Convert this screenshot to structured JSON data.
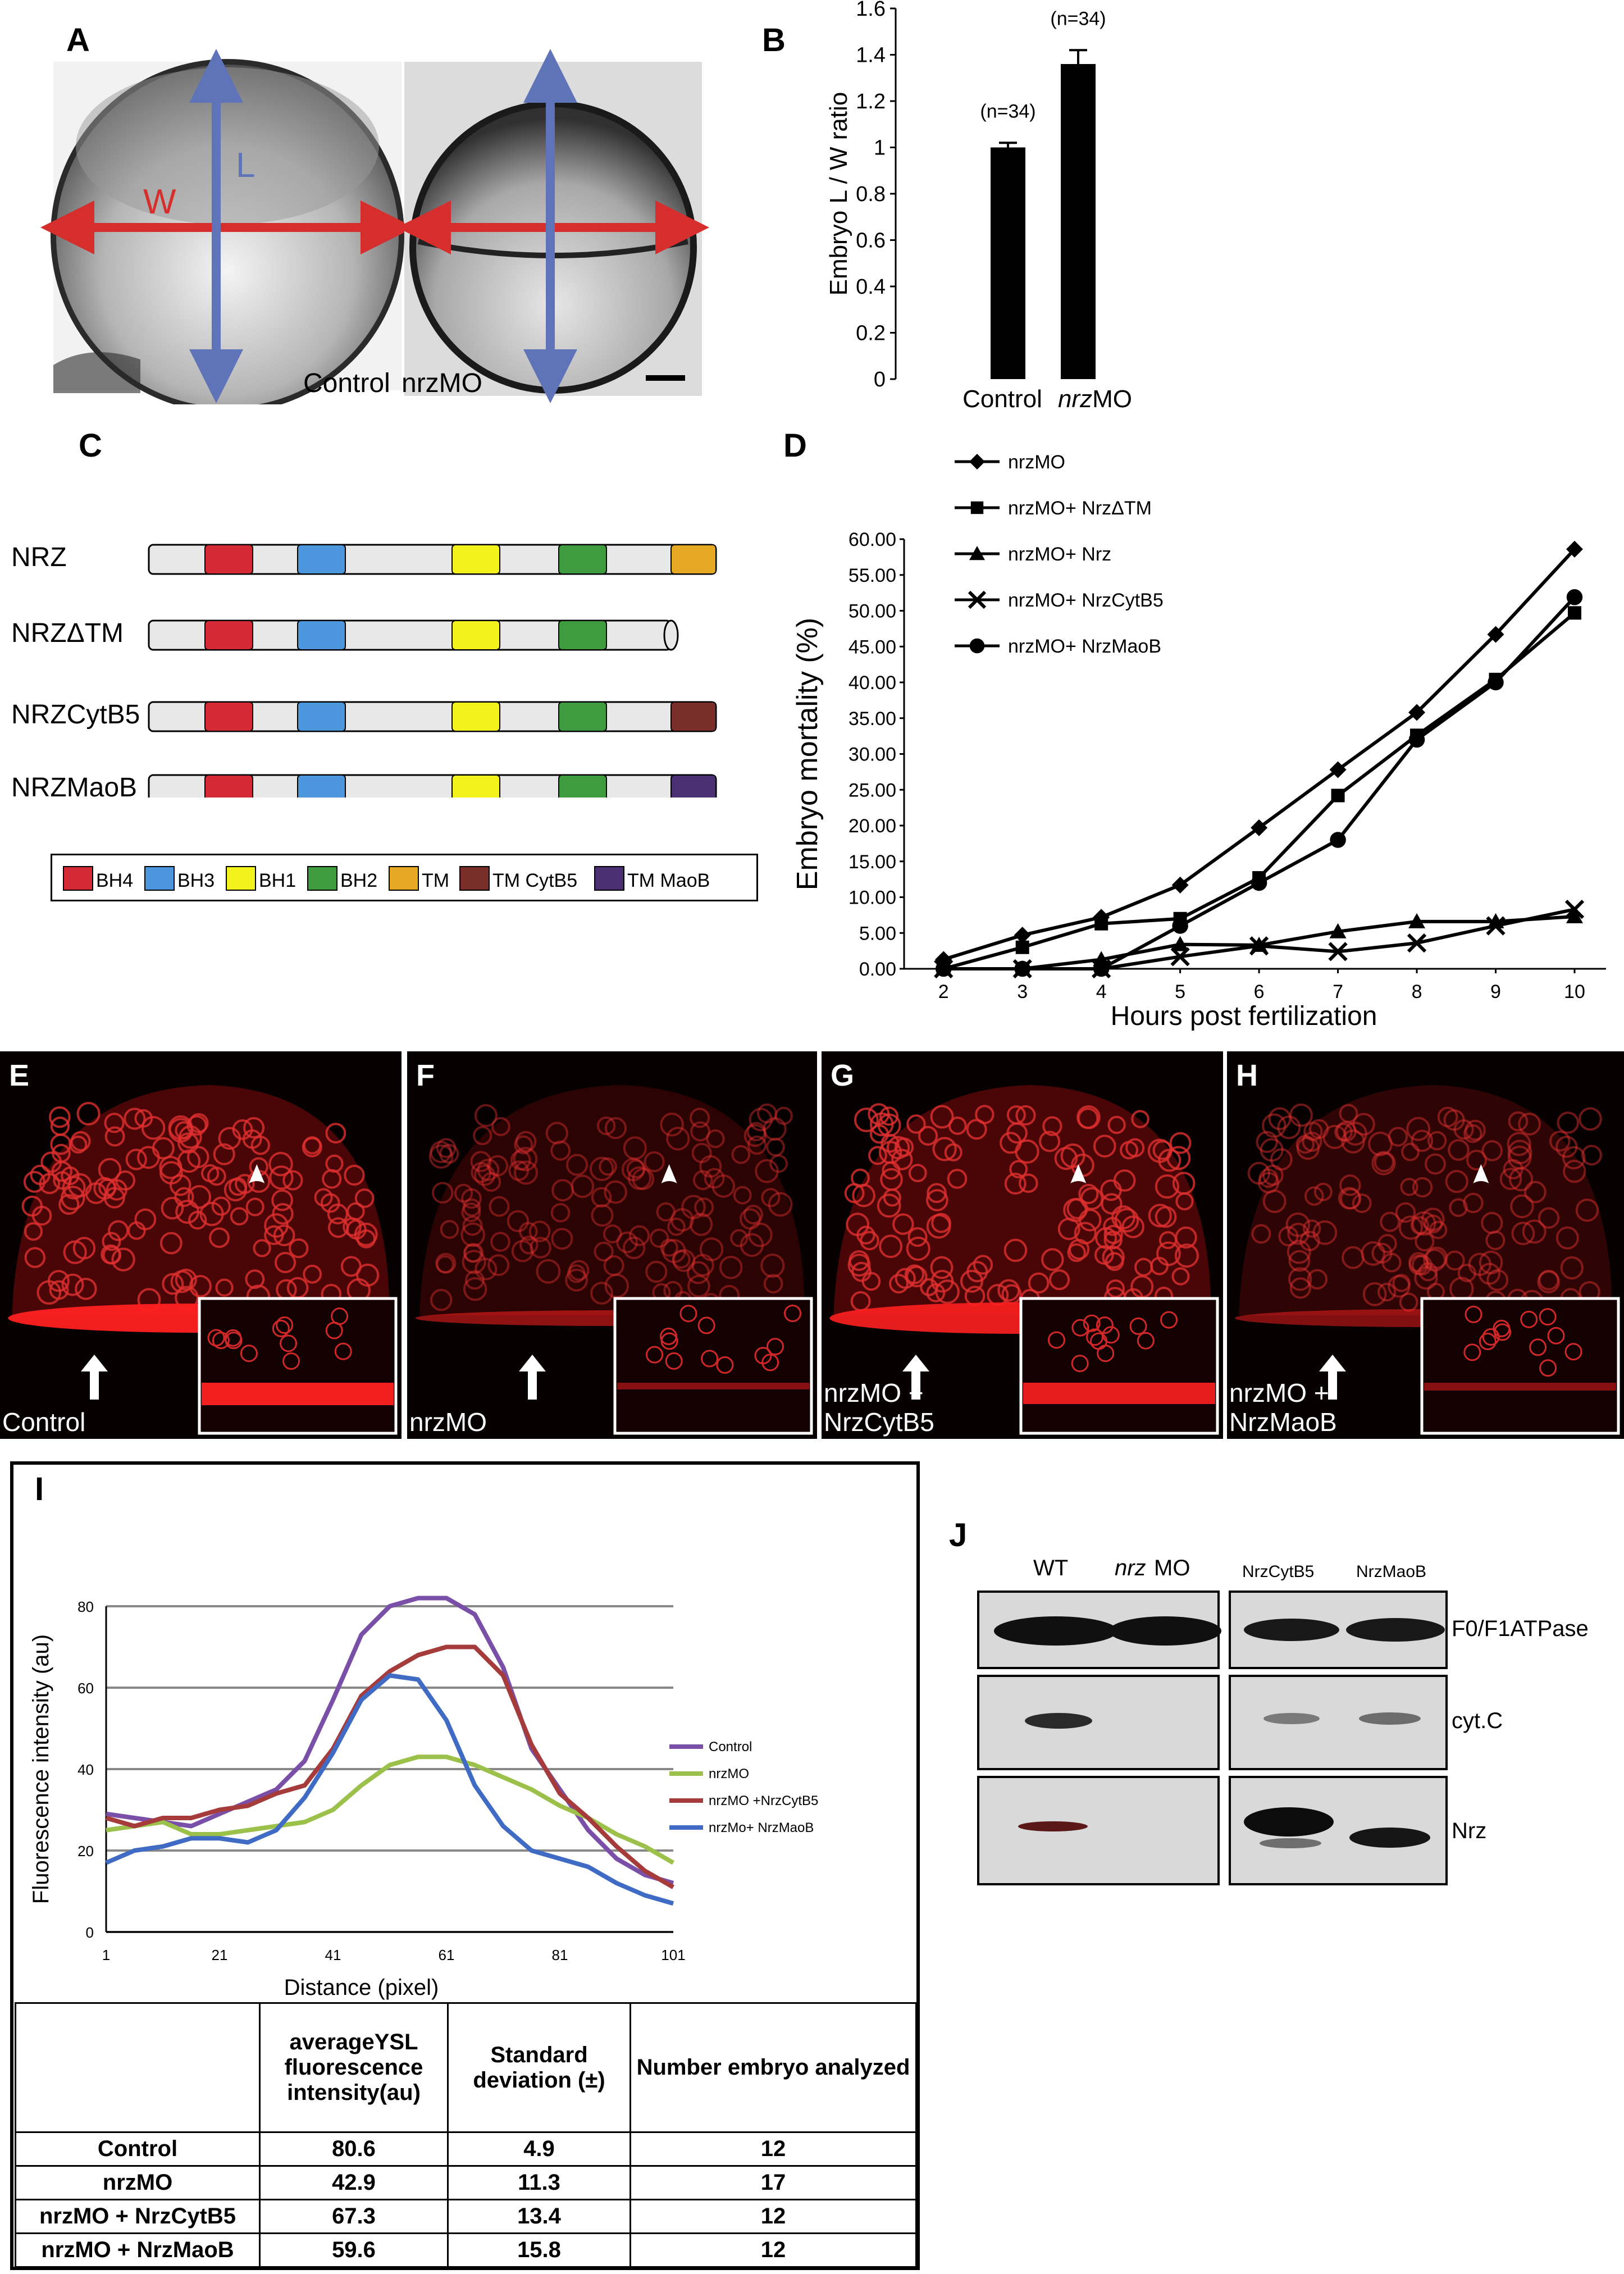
{
  "panels": {
    "A": "A",
    "B": "B",
    "C": "C",
    "D": "D",
    "E": "E",
    "F": "F",
    "G": "G",
    "H": "H",
    "I": "I",
    "J": "J"
  },
  "panel_a": {
    "arrow_w": "W",
    "arrow_l": "L",
    "control_label": "Control",
    "mo_label": "nrzMO",
    "arrow_w_color": "#d62d2d",
    "arrow_l_color": "#5e73b8"
  },
  "panel_c": {
    "constructs": [
      "NRZ",
      "NRZΔTM",
      "NRZCytB5",
      "NRZMaoB"
    ],
    "legend": [
      {
        "label": "BH4",
        "color": "#d42a35"
      },
      {
        "label": "BH3",
        "color": "#4c96dd"
      },
      {
        "label": "BH1",
        "color": "#f4f21c"
      },
      {
        "label": "BH2",
        "color": "#3e9c3e"
      },
      {
        "label": "TM",
        "color": "#e6a823"
      },
      {
        "label": "TM CytB5",
        "color": "#7a2e2a"
      },
      {
        "label": "TM MaoB",
        "color": "#4a2f73"
      }
    ]
  },
  "micrographs": [
    {
      "letter": "E",
      "label": "Control"
    },
    {
      "letter": "F",
      "label": "nrzMO"
    },
    {
      "letter": "G",
      "label": "nrzMO +\nNrzCytB5"
    },
    {
      "letter": "H",
      "label": "nrzMO +\nNrzMaoB"
    }
  ],
  "panel_i_table": {
    "headers": [
      "",
      "averageYSL fluorescence intensity(au)",
      "Standard deviation (±)",
      "Number embryo analyzed"
    ],
    "rows": [
      [
        "Control",
        "80.6",
        "4.9",
        "12"
      ],
      [
        "nrzMO",
        "42.9",
        "11.3",
        "17"
      ],
      [
        "nrzMO + NrzCytB5",
        "67.3",
        "13.4",
        "12"
      ],
      [
        "nrzMO + NrzMaoB",
        "59.6",
        "15.8",
        "12"
      ]
    ]
  },
  "panel_j": {
    "lanes": [
      "WT",
      "nrz",
      "MO",
      "NrzCytB5",
      "NrzMaoB"
    ],
    "rows": [
      "F0/F1ATPase",
      "cyt.C",
      "Nrz"
    ]
  },
  "chart_data": [
    {
      "type": "bar",
      "panel": "B",
      "categories": [
        "Control",
        "nrzMO"
      ],
      "values": [
        1.0,
        1.36
      ],
      "errors": [
        0.02,
        0.06
      ],
      "annotations": [
        "(n=34)",
        "(n=34)"
      ],
      "ylabel": "Embryo L / W ratio",
      "ylim": [
        0,
        1.6
      ],
      "yticks": [
        "0",
        "0.2",
        "0.4",
        "0.6",
        "0.8",
        "1",
        "1.2",
        "1.4",
        "1.6"
      ],
      "bar_color": "#000000"
    },
    {
      "type": "line",
      "panel": "D",
      "x": [
        2,
        3,
        4,
        5,
        6,
        7,
        8,
        9,
        10
      ],
      "xlabel": "Hours post fertilization",
      "ylabel": "Embryo mortality (%)",
      "ylim": [
        0,
        60
      ],
      "yticks": [
        "0.00",
        "5.00",
        "10.00",
        "15.00",
        "20.00",
        "25.00",
        "30.00",
        "35.00",
        "40.00",
        "45.00",
        "50.00",
        "55.00",
        "60.00"
      ],
      "legend_position": "top-left",
      "series": [
        {
          "name": "nrzMO",
          "marker": "diamond",
          "values": [
            1.3,
            4.7,
            7.2,
            11.7,
            19.7,
            27.8,
            35.8,
            46.7,
            58.6
          ]
        },
        {
          "name": "nrzMO+ NrzΔTM",
          "marker": "square",
          "values": [
            0,
            3.0,
            6.3,
            7.0,
            12.7,
            24.2,
            32.6,
            40.4,
            49.7
          ]
        },
        {
          "name": "nrzMO+ Nrz",
          "marker": "triangle",
          "values": [
            0,
            0,
            1.3,
            3.4,
            3.3,
            5.2,
            6.6,
            6.6,
            7.3
          ]
        },
        {
          "name": "nrzMO+ NrzCytB5",
          "marker": "x",
          "values": [
            0,
            0,
            0,
            1.7,
            3.2,
            2.4,
            3.6,
            6.0,
            8.3
          ]
        },
        {
          "name": "nrzMO+ NrzMaoB",
          "marker": "circle",
          "values": [
            0,
            0,
            0,
            6.0,
            12.0,
            18.0,
            32.0,
            40.0,
            51.9
          ]
        }
      ]
    },
    {
      "type": "line",
      "panel": "I",
      "xlabel": "Distance (pixel)",
      "ylabel": "Fluorescence intensity (au)",
      "xlim": [
        1,
        101
      ],
      "ylim": [
        0,
        80
      ],
      "xticks": [
        "1",
        "21",
        "41",
        "61",
        "81",
        "101"
      ],
      "yticks": [
        "0",
        "20",
        "40",
        "60",
        "80"
      ],
      "x": [
        1,
        6,
        11,
        16,
        21,
        26,
        31,
        36,
        41,
        46,
        51,
        56,
        61,
        66,
        71,
        76,
        81,
        86,
        91,
        96,
        101
      ],
      "series": [
        {
          "name": "Control",
          "color": "#7a4fa8",
          "values": [
            29,
            28,
            27,
            26,
            29,
            32,
            35,
            42,
            57,
            73,
            80,
            82,
            82,
            78,
            65,
            45,
            35,
            25,
            18,
            14,
            12
          ]
        },
        {
          "name": "nrzMO",
          "color": "#9bc14b",
          "values": [
            25,
            26,
            27,
            24,
            24,
            25,
            26,
            27,
            30,
            36,
            41,
            43,
            43,
            41,
            38,
            35,
            31,
            28,
            24,
            21,
            17
          ]
        },
        {
          "name": "nrzMO +NrzCytB5",
          "color": "#a63b3b",
          "values": [
            28,
            26,
            28,
            28,
            30,
            31,
            34,
            36,
            45,
            58,
            64,
            68,
            70,
            70,
            63,
            46,
            34,
            28,
            21,
            15,
            11
          ]
        },
        {
          "name": "nrzMo+ NrzMaoB",
          "color": "#3f6bc4",
          "values": [
            17,
            20,
            21,
            23,
            23,
            22,
            25,
            33,
            44,
            57,
            63,
            62,
            52,
            36,
            26,
            20,
            18,
            16,
            12,
            9,
            7
          ]
        }
      ]
    }
  ]
}
